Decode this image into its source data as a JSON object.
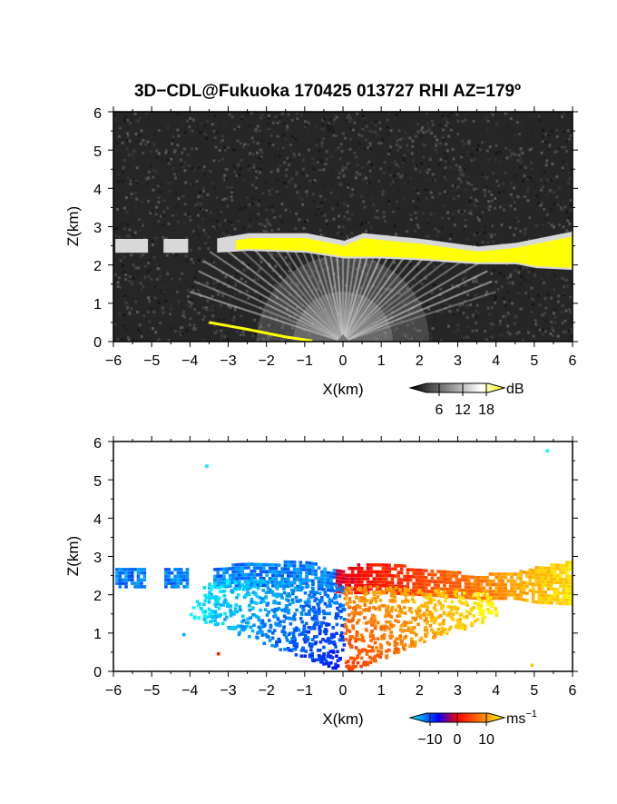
{
  "chart_data": [
    {
      "type": "heatmap",
      "title": "3D−CDL@Fukuoka 170425 013727 RHI AZ=179º",
      "xlabel": "X(km)",
      "ylabel": "Z(km)",
      "xlim": [
        -6,
        6
      ],
      "ylim": [
        0,
        6
      ],
      "xticks": [
        "−6",
        "−5",
        "−4",
        "−3",
        "−2",
        "−1",
        "0",
        "1",
        "2",
        "3",
        "4",
        "5",
        "6"
      ],
      "yticks": [
        "0",
        "1",
        "2",
        "3",
        "4",
        "5",
        "6"
      ],
      "grid": false,
      "variable": "backscatter SNR",
      "colorbar": {
        "unit": "dB",
        "ticks": [
          "6",
          "12",
          "18"
        ],
        "range": [
          0,
          20
        ],
        "colors": [
          "#000000",
          "#ffffff",
          "#ffff00"
        ]
      },
      "features": {
        "layer_top_km": [
          [
            -5.9,
            2.6
          ],
          [
            -4.5,
            2.6
          ],
          [
            -3.4,
            2.6
          ],
          [
            -2.5,
            2.75
          ],
          [
            -1,
            2.75
          ],
          [
            0,
            2.55
          ],
          [
            0.5,
            2.75
          ],
          [
            2,
            2.6
          ],
          [
            3.5,
            2.4
          ],
          [
            4.5,
            2.5
          ],
          [
            5,
            2.6
          ],
          [
            6,
            2.8
          ]
        ],
        "layer_bottom_km": [
          [
            -5.9,
            2.4
          ],
          [
            -4.5,
            2.4
          ],
          [
            -3.4,
            2.4
          ],
          [
            -2.5,
            2.45
          ],
          [
            -1,
            2.4
          ],
          [
            0,
            2.25
          ],
          [
            1,
            2.25
          ],
          [
            2,
            2.2
          ],
          [
            3.5,
            2.1
          ],
          [
            4.5,
            2.1
          ],
          [
            5,
            2.0
          ],
          [
            6,
            1.95
          ]
        ],
        "low_yellow_band_km": [
          [
            -3.5,
            0.5
          ],
          [
            -2.5,
            0.32
          ],
          [
            -1.5,
            0.12
          ],
          [
            -0.8,
            0.02
          ]
        ]
      }
    },
    {
      "type": "heatmap",
      "title": "",
      "xlabel": "X(km)",
      "ylabel": "Z(km)",
      "xlim": [
        -6,
        6
      ],
      "ylim": [
        0,
        6
      ],
      "xticks": [
        "−6",
        "−5",
        "−4",
        "−3",
        "−2",
        "−1",
        "0",
        "1",
        "2",
        "3",
        "4",
        "5",
        "6"
      ],
      "yticks": [
        "0",
        "1",
        "2",
        "3",
        "4",
        "5",
        "6"
      ],
      "grid": false,
      "variable": "radial velocity",
      "colorbar": {
        "unit_base": "ms",
        "unit_exp": "−1",
        "ticks": [
          "−10",
          "0",
          "10"
        ],
        "range": [
          -15,
          15
        ],
        "colors": [
          "#00ffff",
          "#0000ff",
          "#ff0000",
          "#ffff00"
        ]
      },
      "regions": [
        {
          "name": "upper-left layer",
          "x_range": [
            -6,
            -0.2
          ],
          "z_range": [
            1.9,
            3.0
          ],
          "velocity_ms": -12
        },
        {
          "name": "upper-right layer",
          "x_range": [
            0,
            6
          ],
          "z_range": [
            1.9,
            3.1
          ],
          "velocity_ms": 6
        },
        {
          "name": "lower-left fan",
          "x_range": [
            -3.5,
            0
          ],
          "z_range": [
            0,
            1.9
          ],
          "velocity_ms": -9
        },
        {
          "name": "lower-right fan",
          "x_range": [
            0,
            5
          ],
          "z_range": [
            0,
            2.0
          ],
          "velocity_ms": 10
        }
      ]
    }
  ]
}
